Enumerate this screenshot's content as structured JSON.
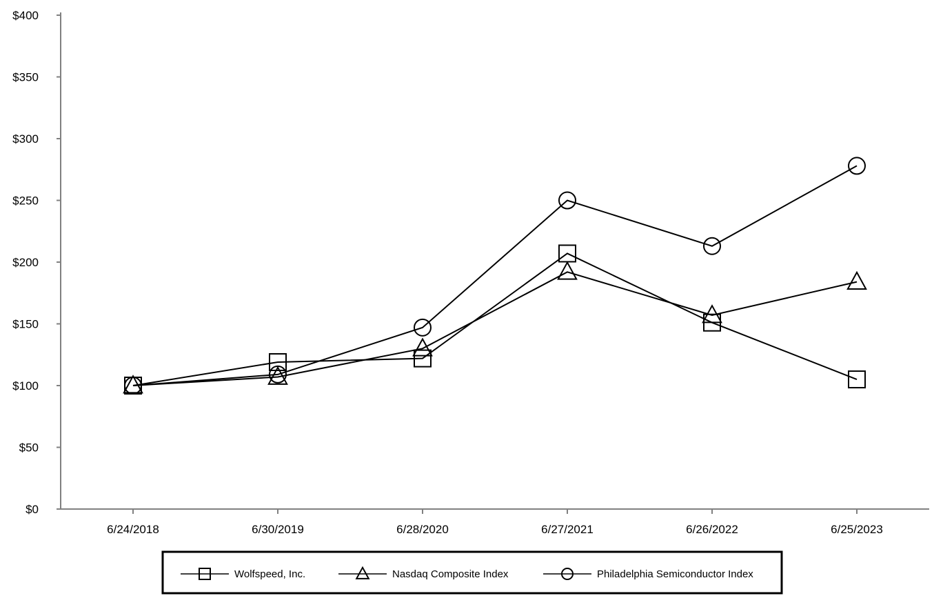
{
  "chart_data": {
    "type": "line",
    "title": "",
    "xlabel": "",
    "ylabel": "",
    "categories": [
      "6/24/2018",
      "6/30/2019",
      "6/28/2020",
      "6/27/2021",
      "6/26/2022",
      "6/25/2023"
    ],
    "y_ticks": [
      "$0",
      "$50",
      "$100",
      "$150",
      "$200",
      "$250",
      "$300",
      "$350",
      "$400"
    ],
    "ylim": [
      0,
      400
    ],
    "grid": false,
    "legend_position": "bottom",
    "series": [
      {
        "name": "Wolfspeed, Inc.",
        "marker": "square",
        "values": [
          100,
          119,
          122,
          207,
          151,
          105
        ]
      },
      {
        "name": "Nasdaq Composite Index",
        "marker": "triangle",
        "values": [
          100,
          107,
          130,
          192,
          157,
          184
        ]
      },
      {
        "name": "Philadelphia Semiconductor Index",
        "marker": "circle",
        "values": [
          100,
          109,
          147,
          250,
          213,
          278
        ]
      }
    ],
    "colors": {
      "line": "#000000",
      "axis": "#808080"
    }
  }
}
